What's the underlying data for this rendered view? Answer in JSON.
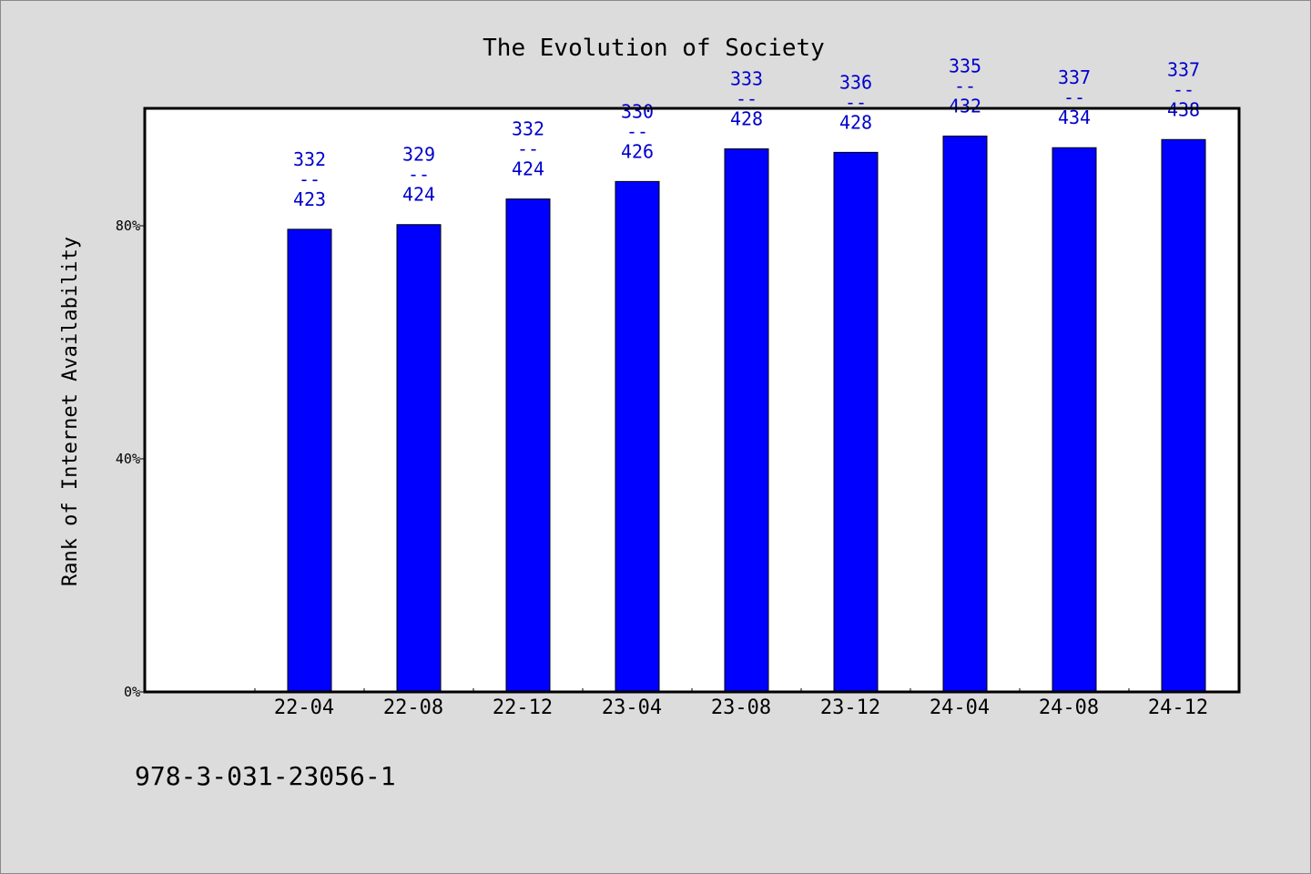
{
  "chart_data": {
    "type": "bar",
    "title": "The Evolution of Society",
    "xlabel": "",
    "ylabel": "Rank of Internet Availability",
    "categories": [
      "22-04",
      "22-08",
      "22-12",
      "23-04",
      "23-08",
      "23-12",
      "24-04",
      "24-08",
      "24-12"
    ],
    "values": [
      79.4,
      80.2,
      84.6,
      87.6,
      93.2,
      92.6,
      95.4,
      93.4,
      94.8
    ],
    "data_labels": [
      {
        "top": "332",
        "sep": "--",
        "bottom": "423"
      },
      {
        "top": "329",
        "sep": "--",
        "bottom": "424"
      },
      {
        "top": "332",
        "sep": "--",
        "bottom": "424"
      },
      {
        "top": "330",
        "sep": "--",
        "bottom": "426"
      },
      {
        "top": "333",
        "sep": "--",
        "bottom": "428"
      },
      {
        "top": "336",
        "sep": "--",
        "bottom": "428"
      },
      {
        "top": "335",
        "sep": "--",
        "bottom": "432"
      },
      {
        "top": "337",
        "sep": "--",
        "bottom": "434"
      },
      {
        "top": "337",
        "sep": "--",
        "bottom": "438"
      }
    ],
    "y_ticks": [
      {
        "value": 0,
        "label": "0%"
      },
      {
        "value": 40,
        "label": "40%"
      },
      {
        "value": 80,
        "label": "80%"
      }
    ],
    "ylim": [
      0,
      100
    ],
    "grid": false,
    "legend": "none",
    "bar_color": "#0000ff",
    "label_color": "#0000cc"
  },
  "footer": {
    "isbn": "978-3-031-23056-1"
  }
}
